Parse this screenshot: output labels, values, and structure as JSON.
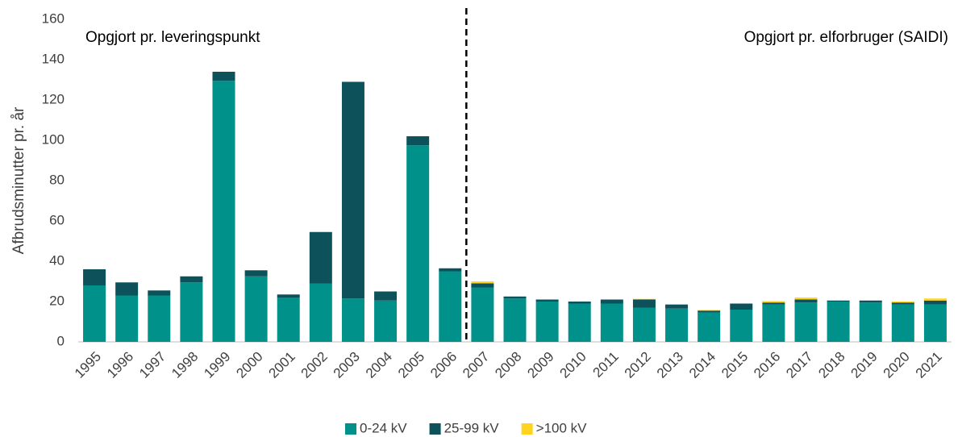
{
  "chart_data": {
    "type": "stacked-bar",
    "y_label": "Afbrudsminutter pr. år",
    "annotations": [
      "Opgjort pr. leveringspunkt",
      "Opgjort pr. elforbruger (SAIDI)"
    ],
    "categories": [
      "1995",
      "1996",
      "1997",
      "1998",
      "1999",
      "2000",
      "2001",
      "2002",
      "2003",
      "2004",
      "2005",
      "2006",
      "2007",
      "2008",
      "2009",
      "2010",
      "2011",
      "2012",
      "2013",
      "2014",
      "2015",
      "2016",
      "2017",
      "2018",
      "2019",
      "2020",
      "2021"
    ],
    "series": [
      {
        "name": "0-24 kV",
        "color": "#00918a",
        "values": [
          28,
          23,
          23,
          29.5,
          129.5,
          32.5,
          22,
          29,
          21.5,
          20.5,
          97.5,
          35,
          27,
          21.5,
          20,
          19,
          19,
          17,
          16.5,
          14.5,
          16,
          18.5,
          19.5,
          20,
          19.5,
          18.5,
          18.5
        ]
      },
      {
        "name": "25-99 kV",
        "color": "#0d525b",
        "values": [
          8,
          6.5,
          2.5,
          3,
          4.5,
          3,
          1.5,
          25.5,
          107.5,
          4.5,
          4.5,
          1.5,
          2,
          1,
          1,
          1,
          2,
          4,
          2,
          1,
          3,
          1,
          1.5,
          0.5,
          1,
          1,
          2
        ]
      },
      {
        "name": ">100 kV",
        "color": "#ffd320",
        "values": [
          null,
          null,
          null,
          null,
          null,
          null,
          null,
          null,
          null,
          null,
          null,
          null,
          1,
          0,
          0,
          0,
          0,
          0.3,
          0.3,
          0.3,
          0,
          0.7,
          1,
          0,
          0,
          0.5,
          1
        ]
      }
    ],
    "ylim": [
      0,
      160
    ],
    "yticks": [
      0,
      20,
      40,
      60,
      80,
      100,
      120,
      140,
      160
    ],
    "grid": false,
    "legend": "bottom"
  }
}
